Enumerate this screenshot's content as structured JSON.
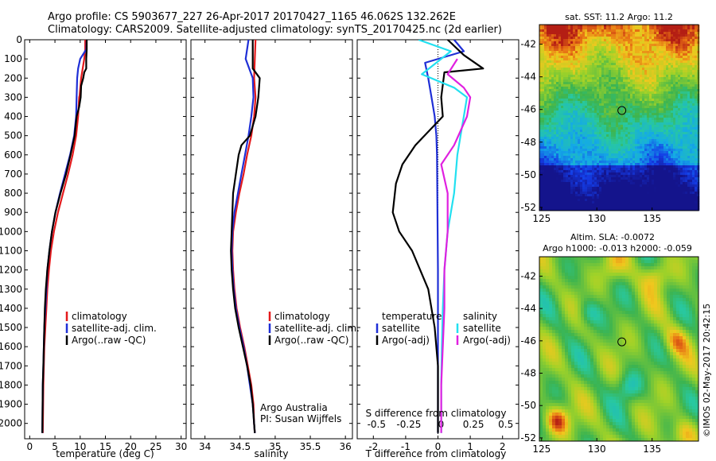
{
  "header": {
    "line1": "Argo profile: CS 5903677_227 26-Apr-2017 20170427_1165 46.062S 132.262E",
    "line2": "Climatology: CARS2009. Satellite-adjusted climatology: synTS_20170425.nc (2d earlier)"
  },
  "colors": {
    "climatology": "#e41a1c",
    "satellite": "#1f2fd6",
    "argo": "#000000",
    "sal_satellite": "#22e0f0",
    "sal_argo": "#e020e0"
  },
  "chart_data": [
    {
      "id": "temperature",
      "type": "line",
      "xlabel": "temperature (deg C)",
      "xlim": [
        -1,
        31
      ],
      "xticks": [
        "0",
        "5",
        "10",
        "15",
        "20",
        "25",
        "30"
      ],
      "xtick_values": [
        0,
        5,
        10,
        15,
        20,
        25,
        30
      ],
      "ylim": [
        2080,
        0
      ],
      "yticks": [
        "0",
        "100",
        "200",
        "300",
        "400",
        "500",
        "600",
        "700",
        "800",
        "900",
        "1000",
        "1100",
        "1200",
        "1300",
        "1400",
        "1500",
        "1600",
        "1700",
        "1800",
        "1900",
        "2000"
      ],
      "ytick_values": [
        0,
        100,
        200,
        300,
        400,
        500,
        600,
        700,
        800,
        900,
        1000,
        1100,
        1200,
        1300,
        1400,
        1500,
        1600,
        1700,
        1800,
        1900,
        2000
      ],
      "legend": [
        "climatology",
        "satellite-adj. clim.",
        "Argo(..raw -QC)"
      ],
      "series": [
        {
          "name": "climatology",
          "color_key": "climatology",
          "x": [
            11.0,
            11.0,
            10.8,
            10.2,
            9.9,
            9.8,
            9.6,
            9.2,
            8.5,
            7.6,
            6.6,
            5.6,
            4.8,
            4.2,
            3.8,
            3.5,
            3.3,
            3.1,
            2.9,
            2.8,
            2.7,
            2.6
          ],
          "y": [
            0,
            50,
            100,
            200,
            290,
            300,
            400,
            500,
            600,
            700,
            800,
            900,
            1000,
            1100,
            1200,
            1300,
            1400,
            1500,
            1600,
            1700,
            1800,
            2050
          ]
        },
        {
          "name": "satellite-adj. clim.",
          "color_key": "satellite",
          "x": [
            11.3,
            11.2,
            10.0,
            9.6,
            9.4,
            9.3,
            9.2,
            8.8,
            8.0,
            7.0,
            6.0,
            5.1,
            4.4,
            3.9,
            3.5,
            3.3,
            3.1,
            2.9,
            2.8,
            2.7,
            2.6,
            2.5
          ],
          "y": [
            0,
            50,
            100,
            150,
            200,
            300,
            400,
            500,
            600,
            700,
            800,
            900,
            1000,
            1100,
            1200,
            1300,
            1400,
            1500,
            1600,
            1700,
            1800,
            2050
          ]
        },
        {
          "name": "Argo(..raw -QC)",
          "color_key": "argo",
          "x": [
            11.3,
            11.3,
            11.2,
            11.2,
            10.8,
            10.6,
            10.2,
            10.1,
            9.8,
            9.3,
            8.9,
            8.1,
            7.2,
            6.1,
            5.1,
            4.4,
            3.9,
            3.5,
            3.2,
            3.0,
            2.9,
            2.7,
            2.6,
            2.5
          ],
          "y": [
            0,
            50,
            100,
            150,
            170,
            200,
            240,
            300,
            350,
            400,
            500,
            600,
            700,
            800,
            900,
            1000,
            1100,
            1200,
            1300,
            1400,
            1500,
            1700,
            1800,
            2050
          ]
        }
      ]
    },
    {
      "id": "salinity",
      "type": "line",
      "xlabel": "salinity",
      "xlim": [
        33.8,
        36.1
      ],
      "xticks": [
        "34",
        "34.5",
        "35",
        "35.5",
        "36"
      ],
      "xtick_values": [
        34,
        34.5,
        35,
        35.5,
        36
      ],
      "ylim": [
        2080,
        0
      ],
      "legend": [
        "climatology",
        "satellite-adj. clim.",
        "Argo(..raw -QC)"
      ],
      "annotation": [
        "Argo Australia",
        "PI: Susan Wijffels"
      ],
      "series": [
        {
          "name": "climatology",
          "color_key": "climatology",
          "x": [
            34.72,
            34.71,
            34.7,
            34.72,
            34.7,
            34.66,
            34.6,
            34.55,
            34.49,
            34.44,
            34.4,
            34.39,
            34.4,
            34.42,
            34.45,
            34.5,
            34.56,
            34.61,
            34.66,
            34.69,
            34.7,
            34.71
          ],
          "y": [
            0,
            100,
            200,
            300,
            400,
            500,
            600,
            700,
            800,
            900,
            1000,
            1100,
            1200,
            1300,
            1400,
            1500,
            1600,
            1700,
            1800,
            1900,
            2000,
            2050
          ]
        },
        {
          "name": "satellite-adj. clim.",
          "color_key": "satellite",
          "x": [
            34.62,
            34.58,
            34.68,
            34.69,
            34.66,
            34.62,
            34.57,
            34.52,
            34.47,
            34.42,
            34.39,
            34.38,
            34.39,
            34.41,
            34.44,
            34.49,
            34.55,
            34.6,
            34.64,
            34.68,
            34.7,
            34.71
          ],
          "y": [
            0,
            100,
            200,
            300,
            400,
            500,
            600,
            700,
            800,
            900,
            1000,
            1100,
            1200,
            1300,
            1400,
            1500,
            1600,
            1700,
            1800,
            1900,
            2000,
            2050
          ]
        },
        {
          "name": "Argo(..raw -QC)",
          "color_key": "argo",
          "x": [
            34.68,
            34.68,
            34.78,
            34.76,
            34.72,
            34.64,
            34.52,
            34.48,
            34.44,
            34.4,
            34.38,
            34.37,
            34.38,
            34.4,
            34.43,
            34.48,
            34.54,
            34.6,
            34.65,
            34.68,
            34.7,
            34.71
          ],
          "y": [
            0,
            150,
            200,
            300,
            400,
            500,
            550,
            600,
            700,
            800,
            1000,
            1100,
            1200,
            1300,
            1400,
            1500,
            1600,
            1700,
            1800,
            1900,
            2000,
            2050
          ]
        }
      ]
    },
    {
      "id": "difference",
      "type": "line",
      "xlabel": "T difference from climatology",
      "xlabel_top": "S difference from climatology",
      "xlim": [
        -2.5,
        2.5
      ],
      "xticks": [
        "-2",
        "-1",
        "0",
        "1",
        "2"
      ],
      "xtick_values": [
        -2,
        -1,
        0,
        1,
        2
      ],
      "xticks_top": [
        "-0.5",
        "-0.25",
        "0",
        "0.25",
        "0.5"
      ],
      "xticks_top_values": [
        -2,
        -1,
        0,
        1,
        2
      ],
      "ylim": [
        2080,
        0
      ],
      "legend_left_title": "temperature",
      "legend_right_title": "salinity",
      "legend_left": [
        "satellite",
        "Argo(-adj)"
      ],
      "legend_right": [
        "satellite",
        "Argo(-adj)"
      ],
      "series": [
        {
          "name": "satellite",
          "color_key": "satellite",
          "x": [
            0.5,
            0.8,
            -0.4,
            -0.3,
            -0.2,
            -0.1,
            -0.05,
            -0.03,
            -0.02,
            -0.01,
            0.0,
            0.0,
            0.0,
            0.0,
            0.0,
            0.0,
            0.0
          ],
          "y": [
            0,
            60,
            120,
            200,
            300,
            400,
            500,
            600,
            800,
            1000,
            1200,
            1400,
            1500,
            1600,
            1800,
            1900,
            2050
          ]
        },
        {
          "name": "Argo(-adj)",
          "color_key": "argo",
          "x": [
            0.3,
            0.8,
            1.4,
            0.2,
            0.1,
            0.15,
            -0.7,
            -1.1,
            -1.3,
            -1.4,
            -1.2,
            -0.8,
            -0.3,
            -0.1,
            0.0,
            0.0,
            0.0
          ],
          "y": [
            0,
            80,
            150,
            170,
            300,
            400,
            550,
            650,
            750,
            900,
            1000,
            1100,
            1300,
            1500,
            1700,
            1900,
            2050
          ]
        },
        {
          "name": "sal-satellite",
          "color_key": "sal_satellite",
          "x": [
            -0.6,
            0.4,
            -0.5,
            0.5,
            0.9,
            0.8,
            0.7,
            0.6,
            0.5,
            0.3,
            0.2,
            0.15,
            0.12,
            0.1,
            0.1,
            0.1
          ],
          "y": [
            0,
            60,
            180,
            250,
            300,
            400,
            500,
            600,
            800,
            1000,
            1200,
            1400,
            1600,
            1800,
            1900,
            2050
          ]
        },
        {
          "name": "sal-Argo(-adj)",
          "color_key": "sal_argo",
          "x": [
            0.6,
            0.3,
            0.8,
            1.0,
            0.9,
            0.5,
            0.1,
            0.3,
            0.3,
            0.2,
            0.2,
            0.15,
            0.1,
            0.1,
            0.1
          ],
          "y": [
            100,
            180,
            250,
            300,
            400,
            550,
            650,
            800,
            1000,
            1200,
            1400,
            1600,
            1800,
            1900,
            2050
          ]
        }
      ]
    }
  ],
  "maps": {
    "sst": {
      "title": "sat. SST: 11.2  Argo: 11.2",
      "yticks": [
        "-42",
        "-44",
        "-46",
        "-48",
        "-50",
        "-52"
      ],
      "ytick_values": [
        -42,
        -44,
        -46,
        -48,
        -50,
        -52
      ],
      "xticks": [
        "125",
        "130",
        "135"
      ],
      "xtick_values": [
        125,
        130,
        135
      ],
      "lon_range": [
        124.8,
        139.2
      ],
      "lat_range": [
        -52.2,
        -40.8
      ],
      "marker": {
        "lon": 132.262,
        "lat": -46.062
      }
    },
    "sla": {
      "title_line1": "Altim. SLA: -0.0072",
      "title_line2": "Argo h1000: -0.013 h2000: -0.059",
      "yticks": [
        "-42",
        "-44",
        "-46",
        "-48",
        "-50",
        "-52"
      ],
      "ytick_values": [
        -42,
        -44,
        -46,
        -48,
        -50,
        -52
      ],
      "xticks": [
        "125",
        "130",
        "135"
      ],
      "xtick_values": [
        125,
        130,
        135
      ],
      "lon_range": [
        124.8,
        139.2
      ],
      "lat_range": [
        -52.2,
        -40.8
      ],
      "marker": {
        "lon": 132.262,
        "lat": -46.062
      }
    }
  },
  "footer": {
    "imos_stamp": "©IMOS 02-May-2017 20:42:15"
  }
}
